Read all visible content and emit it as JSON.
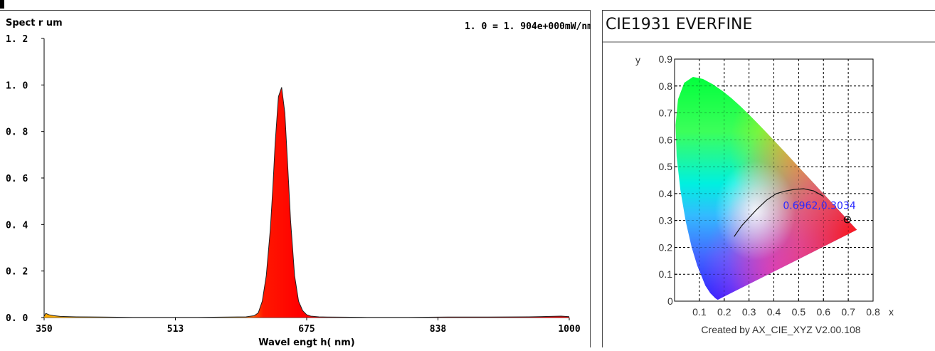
{
  "spectrum": {
    "ylabel": "Spect r um",
    "normalization": "1. 0  = 1. 904e+000mW/nm",
    "xlabel": "Wavel engt h( nm)",
    "yticks": [
      "0. 0",
      "0. 2",
      "0. 4",
      "0. 6",
      "0. 8",
      "1. 0",
      "1. 2"
    ],
    "xticks": [
      "350",
      "513",
      "675",
      "838",
      "1000"
    ]
  },
  "cie": {
    "title": "CIE1931  EVERFINE",
    "ylabel": "y",
    "xlabel": "x",
    "xticks": [
      "0",
      "0.1",
      "0.2",
      "0.3",
      "0.4",
      "0.5",
      "0.6",
      "0.7",
      "0.8"
    ],
    "yticks": [
      "0.1",
      "0.2",
      "0.3",
      "0.4",
      "0.5",
      "0.6",
      "0.7",
      "0.8",
      "0.9"
    ],
    "origin_label": "0",
    "point_label": "0.6962,0.3034",
    "footer": "Created by AX_CIE_XYZ V2.00.108"
  },
  "chart_data": [
    {
      "type": "area",
      "title": "",
      "ylabel": "Spect r um",
      "xlabel": "Wavel engt h( nm)",
      "xlim": [
        350,
        1000
      ],
      "ylim": [
        0,
        1.2
      ],
      "grid": false,
      "peak_color": "#ff0000",
      "series": [
        {
          "x": [
            350,
            352,
            356,
            362,
            370,
            390,
            420,
            460,
            500,
            540,
            580,
            600,
            610,
            615,
            620,
            625,
            630,
            633,
            636,
            640,
            644,
            648,
            652,
            655,
            660,
            665,
            670,
            675,
            680,
            690,
            700,
            750,
            800,
            850,
            900,
            950,
            990,
            1000
          ],
          "values": [
            0.005,
            0.018,
            0.012,
            0.008,
            0.005,
            0.003,
            0.002,
            0.001,
            0.001,
            0.001,
            0.002,
            0.003,
            0.008,
            0.02,
            0.07,
            0.18,
            0.38,
            0.55,
            0.75,
            0.95,
            0.99,
            0.88,
            0.62,
            0.42,
            0.18,
            0.07,
            0.03,
            0.012,
            0.006,
            0.003,
            0.002,
            0.001,
            0.001,
            0.002,
            0.002,
            0.003,
            0.006,
            0.004
          ]
        }
      ]
    },
    {
      "type": "scatter",
      "title": "CIE1931  EVERFINE",
      "xlabel": "x",
      "ylabel": "y",
      "xlim": [
        0,
        0.8
      ],
      "ylim": [
        0,
        0.9
      ],
      "grid": true,
      "series": [
        {
          "x": [
            0.6962
          ],
          "values": [
            0.3034
          ]
        }
      ],
      "planckian_locus": {
        "x": [
          0.24,
          0.27,
          0.3,
          0.33,
          0.37,
          0.41,
          0.45,
          0.48,
          0.52,
          0.56,
          0.6
        ],
        "values": [
          0.24,
          0.28,
          0.31,
          0.34,
          0.375,
          0.4,
          0.41,
          0.415,
          0.418,
          0.41,
          0.39
        ]
      }
    }
  ]
}
